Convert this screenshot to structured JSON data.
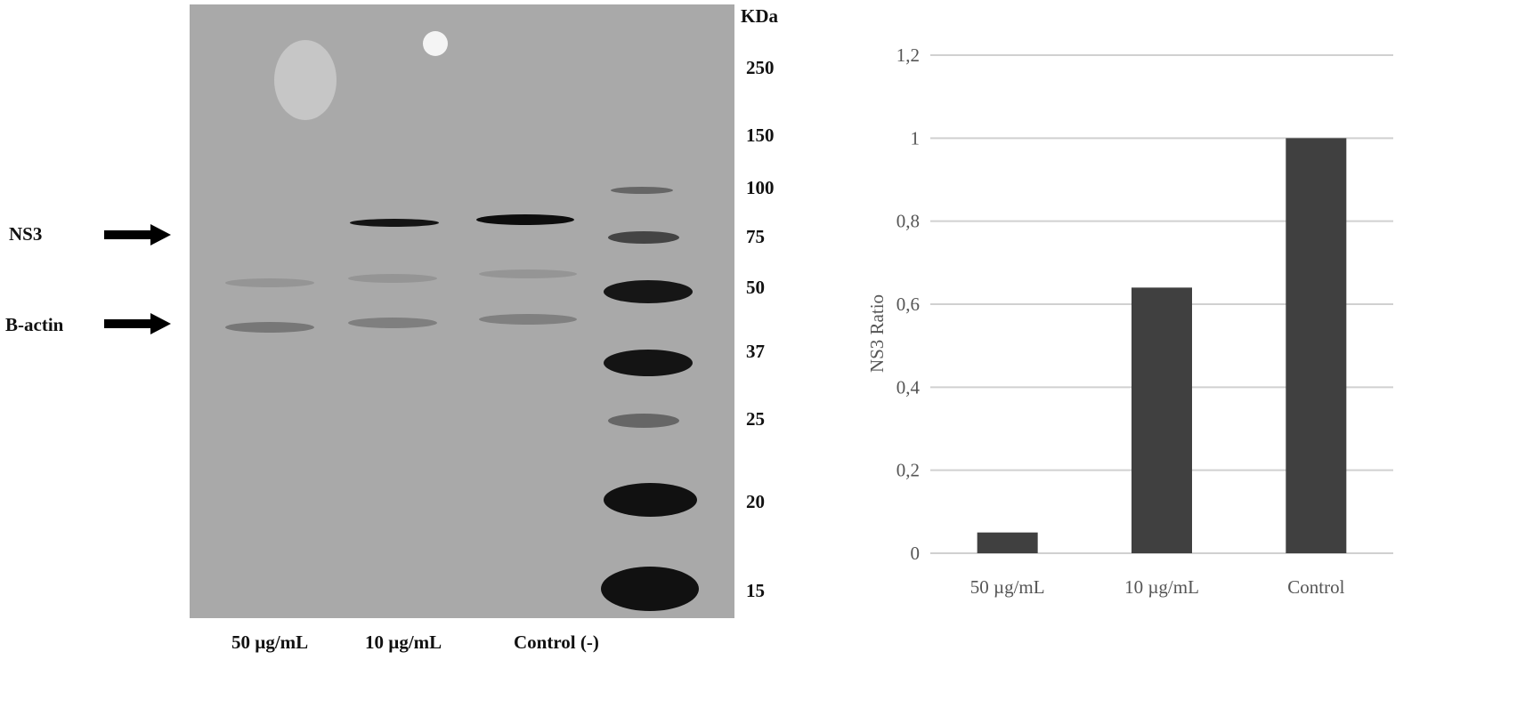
{
  "blot": {
    "unit_label": "KDa",
    "markers": [
      "250",
      "150",
      "100",
      "75",
      "50",
      "37",
      "25",
      "20",
      "15"
    ],
    "band_labels": [
      "NS3",
      "B-actin"
    ],
    "lane_labels": [
      "50 µg/mL",
      "10 µg/mL",
      "Control (-)"
    ]
  },
  "chart_data": {
    "type": "bar",
    "categories": [
      "50 µg/mL",
      "10 µg/mL",
      "Control"
    ],
    "values": [
      0.05,
      0.64,
      1.0
    ],
    "title": "",
    "xlabel": "",
    "ylabel": "NS3 Ratio",
    "ylim": [
      0,
      1.2
    ],
    "yticks": [
      "0",
      "0,2",
      "0,4",
      "0,6",
      "0,8",
      "1",
      "1,2"
    ],
    "grid": true,
    "bar_color": "#404040"
  }
}
